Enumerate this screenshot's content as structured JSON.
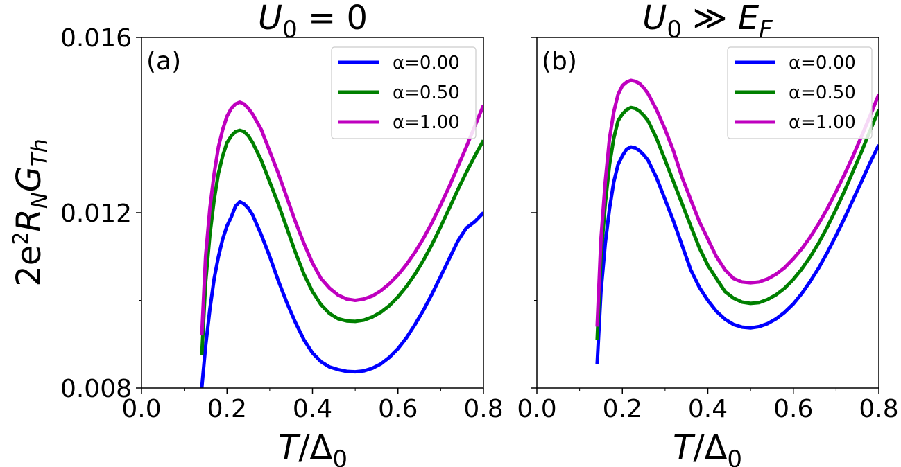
{
  "chart_data": [
    {
      "type": "line",
      "panel": "(a)",
      "title": {
        "var": "U",
        "sub": "0",
        "rest": " = 0"
      },
      "xlabel": {
        "var": "T",
        "rest": "/Δ",
        "sub": "0"
      },
      "ylabel": {
        "lead": "2e",
        "sup": "2",
        "var1": "R",
        "sub1": "N",
        "var2": "G",
        "sub2": "Th"
      },
      "xlim": [
        0.0,
        0.8
      ],
      "ylim": [
        0.008,
        0.016
      ],
      "xticks": [
        "0.0",
        "0.2",
        "0.4",
        "0.6",
        "0.8"
      ],
      "yticks": [
        "0.008",
        "0.012",
        "0.016"
      ],
      "legend_position": "upper-right",
      "series": [
        {
          "name": "α=0.00",
          "color": "#0000ff",
          "x": [
            0.141,
            0.15,
            0.16,
            0.17,
            0.18,
            0.19,
            0.2,
            0.21,
            0.22,
            0.23,
            0.24,
            0.25,
            0.26,
            0.28,
            0.3,
            0.32,
            0.34,
            0.36,
            0.38,
            0.4,
            0.42,
            0.44,
            0.46,
            0.48,
            0.5,
            0.52,
            0.54,
            0.56,
            0.58,
            0.6,
            0.62,
            0.64,
            0.66,
            0.68,
            0.7,
            0.72,
            0.74,
            0.76,
            0.78,
            0.8
          ],
          "y": [
            0.008,
            0.00895,
            0.0098,
            0.0105,
            0.011,
            0.0114,
            0.0117,
            0.0119,
            0.01215,
            0.01225,
            0.0122,
            0.0121,
            0.01195,
            0.0115,
            0.011,
            0.01045,
            0.00995,
            0.0095,
            0.0091,
            0.0088,
            0.0086,
            0.00848,
            0.00842,
            0.00838,
            0.00837,
            0.00839,
            0.00845,
            0.00855,
            0.0087,
            0.0089,
            0.00915,
            0.00945,
            0.00978,
            0.01015,
            0.01055,
            0.01095,
            0.01135,
            0.01165,
            0.0118,
            0.012
          ]
        },
        {
          "name": "α=0.50",
          "color": "#008000",
          "x": [
            0.141,
            0.15,
            0.16,
            0.17,
            0.18,
            0.19,
            0.2,
            0.21,
            0.22,
            0.23,
            0.24,
            0.25,
            0.26,
            0.28,
            0.3,
            0.32,
            0.34,
            0.36,
            0.38,
            0.4,
            0.42,
            0.44,
            0.46,
            0.48,
            0.5,
            0.52,
            0.54,
            0.56,
            0.58,
            0.6,
            0.62,
            0.64,
            0.66,
            0.68,
            0.7,
            0.72,
            0.74,
            0.76,
            0.78,
            0.8
          ],
          "y": [
            0.00875,
            0.0104,
            0.0115,
            0.0123,
            0.0129,
            0.0133,
            0.0136,
            0.01375,
            0.01385,
            0.01388,
            0.01385,
            0.01375,
            0.0136,
            0.0132,
            0.0127,
            0.0122,
            0.01165,
            0.0111,
            0.0106,
            0.0102,
            0.0099,
            0.0097,
            0.00958,
            0.00953,
            0.00952,
            0.00955,
            0.00962,
            0.00973,
            0.00988,
            0.01008,
            0.01032,
            0.0106,
            0.01092,
            0.01128,
            0.01168,
            0.0121,
            0.01252,
            0.01292,
            0.0133,
            0.01365
          ]
        },
        {
          "name": "α=1.00",
          "color": "#bf00bf",
          "x": [
            0.141,
            0.15,
            0.16,
            0.17,
            0.18,
            0.19,
            0.2,
            0.21,
            0.22,
            0.23,
            0.24,
            0.25,
            0.26,
            0.28,
            0.3,
            0.32,
            0.34,
            0.36,
            0.38,
            0.4,
            0.42,
            0.44,
            0.46,
            0.48,
            0.5,
            0.52,
            0.54,
            0.56,
            0.58,
            0.6,
            0.62,
            0.64,
            0.66,
            0.68,
            0.7,
            0.72,
            0.74,
            0.76,
            0.78,
            0.8
          ],
          "y": [
            0.0092,
            0.011,
            0.0121,
            0.0129,
            0.0135,
            0.0139,
            0.0142,
            0.01438,
            0.01448,
            0.01452,
            0.01448,
            0.01438,
            0.01425,
            0.0139,
            0.0134,
            0.0129,
            0.01235,
            0.0118,
            0.0113,
            0.01085,
            0.0105,
            0.01028,
            0.01012,
            0.01003,
            0.01,
            0.01003,
            0.0101,
            0.01022,
            0.01038,
            0.01058,
            0.01082,
            0.0111,
            0.01142,
            0.01178,
            0.01218,
            0.0126,
            0.01305,
            0.0135,
            0.01398,
            0.01445
          ]
        }
      ]
    },
    {
      "type": "line",
      "panel": "(b)",
      "title": {
        "var": "U",
        "sub": "0",
        "rest": " ≫ ",
        "var2": "E",
        "sub2": "F"
      },
      "xlabel": {
        "var": "T",
        "rest": "/Δ",
        "sub": "0"
      },
      "xlim": [
        0.0,
        0.8
      ],
      "ylim": [
        0.008,
        0.016
      ],
      "xticks": [
        "0.0",
        "0.2",
        "0.4",
        "0.6",
        "0.8"
      ],
      "legend_position": "upper-right",
      "series": [
        {
          "name": "α=0.00",
          "color": "#0000ff",
          "x": [
            0.141,
            0.15,
            0.16,
            0.17,
            0.18,
            0.19,
            0.2,
            0.21,
            0.22,
            0.23,
            0.24,
            0.25,
            0.26,
            0.28,
            0.3,
            0.32,
            0.34,
            0.36,
            0.38,
            0.4,
            0.42,
            0.44,
            0.46,
            0.48,
            0.5,
            0.52,
            0.54,
            0.56,
            0.58,
            0.6,
            0.62,
            0.64,
            0.66,
            0.68,
            0.7,
            0.72,
            0.74,
            0.76,
            0.78,
            0.8
          ],
          "y": [
            0.00855,
            0.0102,
            0.0113,
            0.0121,
            0.0127,
            0.0131,
            0.0133,
            0.01345,
            0.0135,
            0.01348,
            0.01342,
            0.01332,
            0.0132,
            0.0128,
            0.0123,
            0.0118,
            0.01125,
            0.0107,
            0.0103,
            0.01,
            0.00975,
            0.00957,
            0.00945,
            0.00939,
            0.00937,
            0.0094,
            0.00947,
            0.00958,
            0.00973,
            0.00992,
            0.01016,
            0.01044,
            0.01075,
            0.0111,
            0.01148,
            0.01188,
            0.0123,
            0.01272,
            0.01315,
            0.01355
          ]
        },
        {
          "name": "α=0.50",
          "color": "#008000",
          "x": [
            0.141,
            0.15,
            0.16,
            0.17,
            0.18,
            0.19,
            0.2,
            0.21,
            0.22,
            0.23,
            0.24,
            0.25,
            0.26,
            0.28,
            0.3,
            0.32,
            0.34,
            0.36,
            0.38,
            0.4,
            0.42,
            0.44,
            0.46,
            0.48,
            0.5,
            0.52,
            0.54,
            0.56,
            0.58,
            0.6,
            0.62,
            0.64,
            0.66,
            0.68,
            0.7,
            0.72,
            0.74,
            0.76,
            0.78,
            0.8
          ],
          "y": [
            0.0091,
            0.011,
            0.0122,
            0.0131,
            0.0137,
            0.0141,
            0.01425,
            0.01435,
            0.0144,
            0.01438,
            0.01432,
            0.01422,
            0.0141,
            0.0137,
            0.0132,
            0.0127,
            0.0122,
            0.0117,
            0.0112,
            0.0108,
            0.0105,
            0.0102,
            0.01005,
            0.00996,
            0.00993,
            0.00995,
            0.01002,
            0.01013,
            0.01028,
            0.01048,
            0.01072,
            0.011,
            0.01132,
            0.01168,
            0.01208,
            0.0125,
            0.01295,
            0.0134,
            0.01388,
            0.01435
          ]
        },
        {
          "name": "α=1.00",
          "color": "#bf00bf",
          "x": [
            0.141,
            0.15,
            0.16,
            0.17,
            0.18,
            0.19,
            0.2,
            0.21,
            0.22,
            0.23,
            0.24,
            0.25,
            0.26,
            0.28,
            0.3,
            0.32,
            0.34,
            0.36,
            0.38,
            0.4,
            0.42,
            0.44,
            0.46,
            0.48,
            0.5,
            0.52,
            0.54,
            0.56,
            0.58,
            0.6,
            0.62,
            0.64,
            0.66,
            0.68,
            0.7,
            0.72,
            0.74,
            0.76,
            0.78,
            0.8
          ],
          "y": [
            0.0094,
            0.0114,
            0.0127,
            0.0137,
            0.0143,
            0.0147,
            0.0149,
            0.01498,
            0.01502,
            0.015,
            0.01495,
            0.01485,
            0.01472,
            0.01435,
            0.0139,
            0.0134,
            0.0128,
            0.0123,
            0.0118,
            0.0114,
            0.011,
            0.0107,
            0.0105,
            0.01042,
            0.0104,
            0.01042,
            0.01049,
            0.0106,
            0.01075,
            0.01095,
            0.01118,
            0.01145,
            0.01176,
            0.0121,
            0.01248,
            0.01288,
            0.0133,
            0.01375,
            0.01422,
            0.0147
          ]
        }
      ]
    }
  ]
}
